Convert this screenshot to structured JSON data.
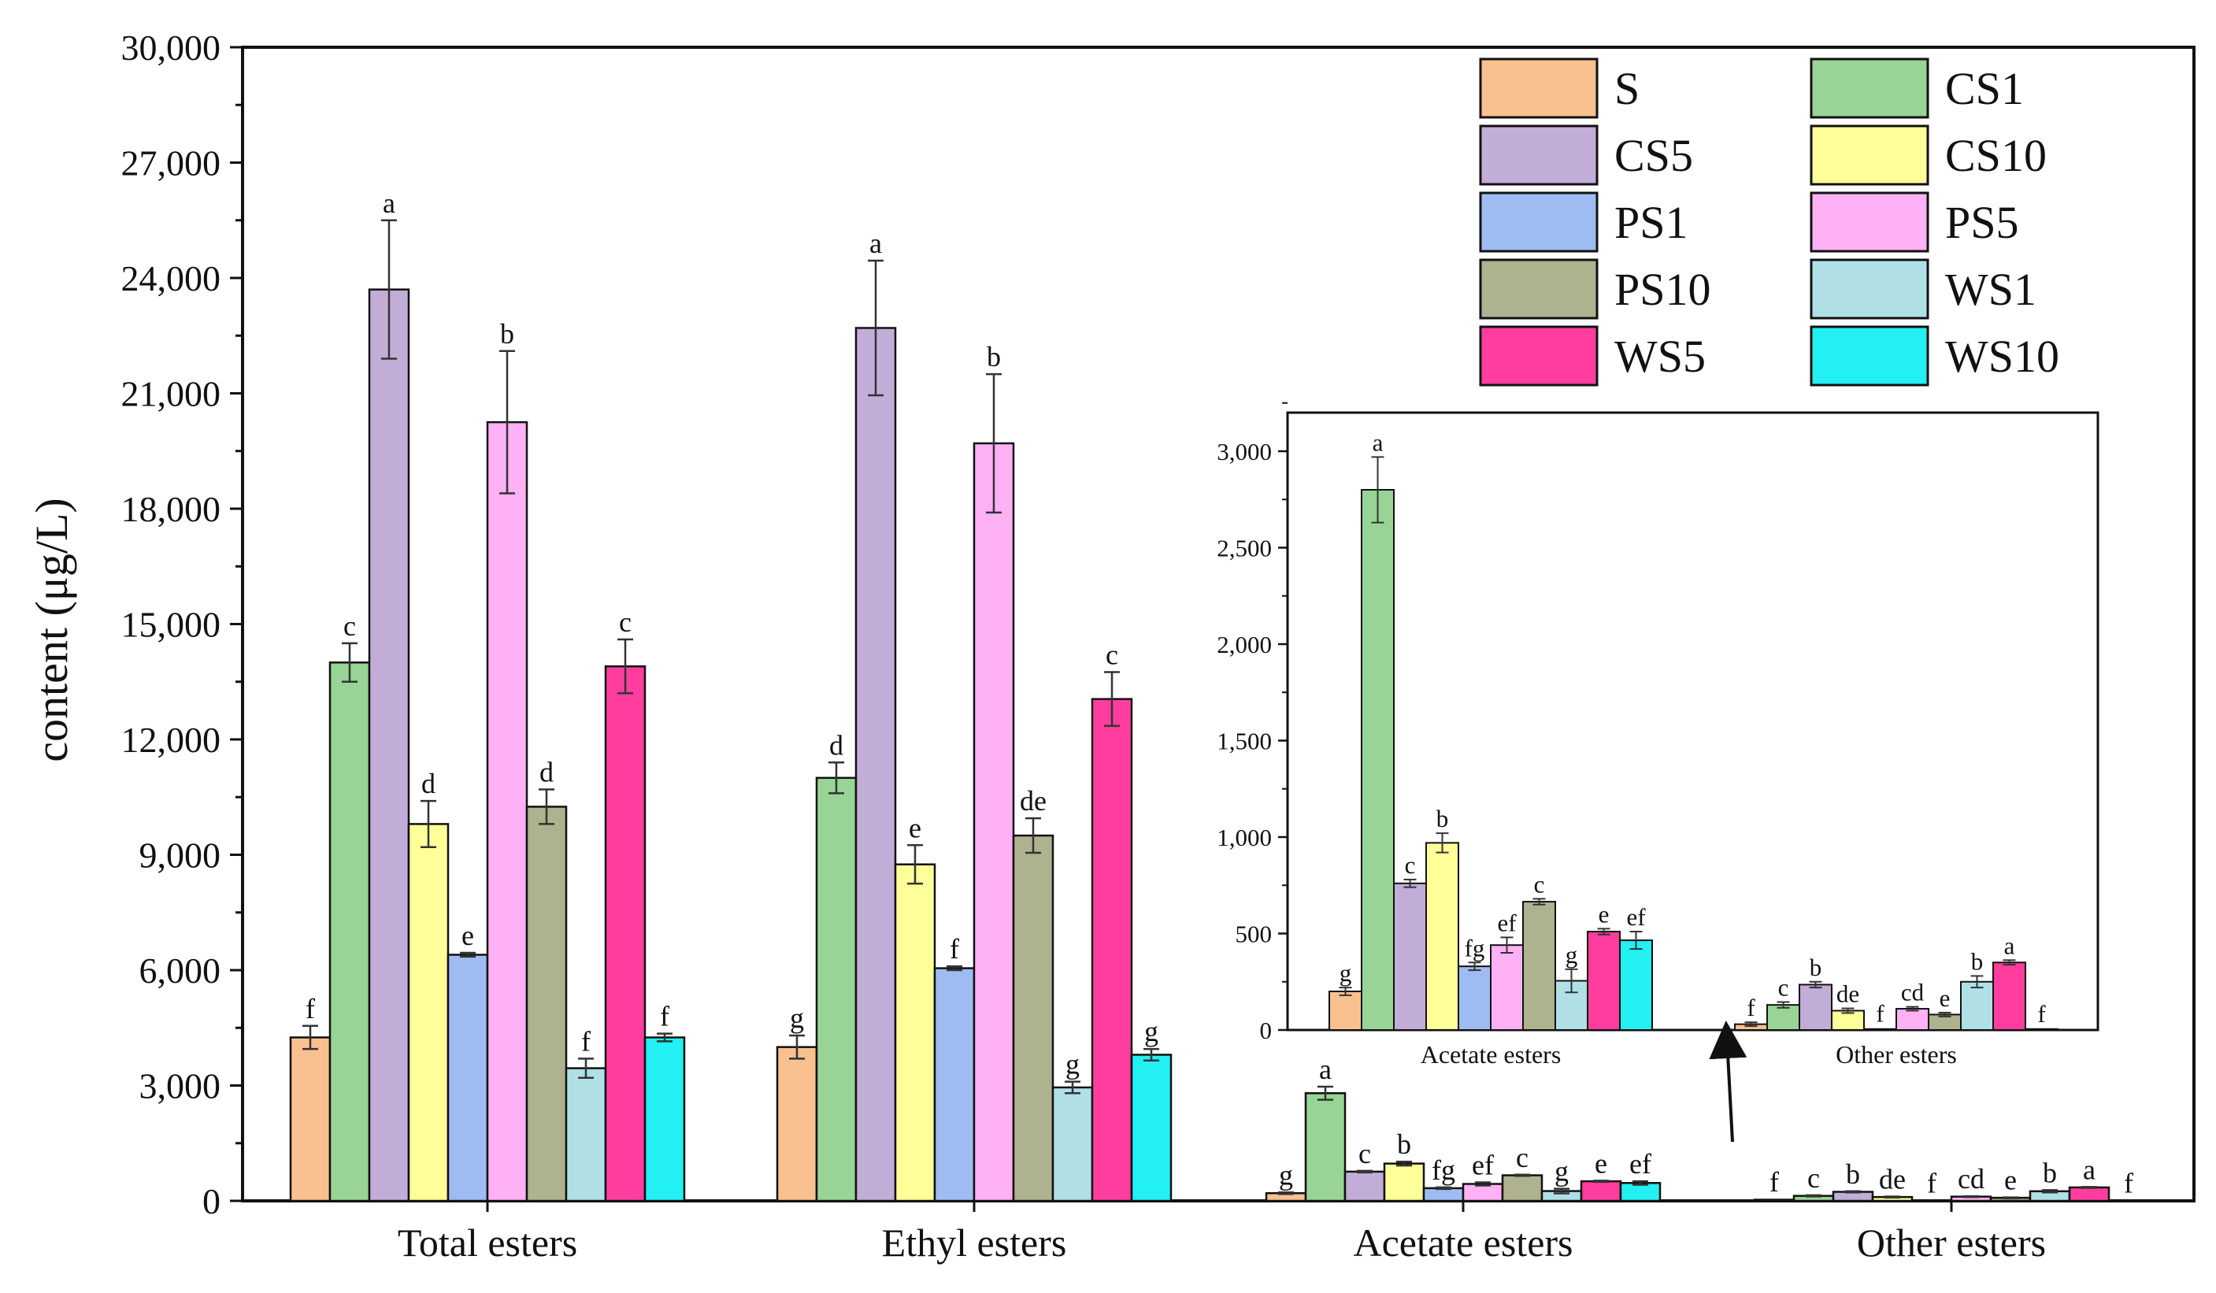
{
  "chart_data": {
    "main": {
      "type": "bar",
      "ylabel": "content (μg/L)",
      "ylim": [
        0,
        30000
      ],
      "yticks": [
        0,
        3000,
        6000,
        9000,
        12000,
        15000,
        18000,
        21000,
        24000,
        27000,
        30000
      ],
      "ytick_labels": [
        "0",
        "3,000",
        "6,000",
        "9,000",
        "12,000",
        "15,000",
        "18,000",
        "21,000",
        "24,000",
        "27,000",
        "30,000"
      ],
      "categories": [
        "Total esters",
        "Ethyl esters",
        "Acetate esters",
        "Other esters"
      ],
      "series": [
        {
          "name": "S",
          "color": "#F9C18F",
          "values": [
            4250,
            4000,
            200,
            30
          ],
          "errors": [
            300,
            300,
            20,
            10
          ],
          "letters": [
            "f",
            "g",
            "g",
            "f"
          ]
        },
        {
          "name": "CS1",
          "color": "#98D495",
          "values": [
            14000,
            11000,
            2800,
            130
          ],
          "errors": [
            500,
            400,
            170,
            15
          ],
          "letters": [
            "c",
            "d",
            "a",
            "c"
          ]
        },
        {
          "name": "CS5",
          "color": "#C2ACD8",
          "values": [
            23700,
            22700,
            760,
            235
          ],
          "errors": [
            1800,
            1750,
            20,
            15
          ],
          "letters": [
            "a",
            "a",
            "c",
            "b"
          ]
        },
        {
          "name": "CS10",
          "color": "#FFFF99",
          "values": [
            9800,
            8750,
            970,
            100
          ],
          "errors": [
            600,
            500,
            50,
            12
          ],
          "letters": [
            "d",
            "e",
            "b",
            "de"
          ]
        },
        {
          "name": "PS1",
          "color": "#9EBCF2",
          "values": [
            6400,
            6050,
            330,
            5
          ],
          "errors": [
            50,
            50,
            20,
            5
          ],
          "letters": [
            "e",
            "f",
            "fg",
            "f"
          ]
        },
        {
          "name": "PS5",
          "color": "#FFB1F5",
          "values": [
            20250,
            19700,
            440,
            110
          ],
          "errors": [
            1850,
            1800,
            40,
            10
          ],
          "letters": [
            "b",
            "b",
            "ef",
            "cd"
          ]
        },
        {
          "name": "PS10",
          "color": "#AFB28E",
          "values": [
            10250,
            9500,
            665,
            80
          ],
          "errors": [
            450,
            450,
            15,
            10
          ],
          "letters": [
            "d",
            "de",
            "c",
            "e"
          ]
        },
        {
          "name": "WS1",
          "color": "#B0E0E6",
          "values": [
            3450,
            2950,
            255,
            250
          ],
          "errors": [
            250,
            150,
            60,
            30
          ],
          "letters": [
            "f",
            "g",
            "g",
            "b"
          ]
        },
        {
          "name": "WS5",
          "color": "#FF3D9E",
          "values": [
            13900,
            13050,
            510,
            350
          ],
          "errors": [
            700,
            700,
            15,
            12
          ],
          "letters": [
            "c",
            "c",
            "e",
            "a"
          ]
        },
        {
          "name": "WS10",
          "color": "#22F0F2",
          "values": [
            4250,
            3800,
            465,
            5
          ],
          "errors": [
            100,
            150,
            45,
            3
          ],
          "letters": [
            "f",
            "g",
            "ef",
            "f"
          ]
        }
      ],
      "legend_position": "top-right"
    },
    "inset": {
      "type": "bar",
      "ylim": [
        0,
        3200
      ],
      "yticks": [
        0,
        500,
        1000,
        1500,
        2000,
        2500,
        3000
      ],
      "ytick_labels": [
        "0",
        "500",
        "1,000",
        "1,500",
        "2,000",
        "2,500",
        "3,000"
      ],
      "categories": [
        "Acetate esters",
        "Other esters"
      ],
      "note": "zoom of Acetate esters and Other esters groups"
    }
  }
}
